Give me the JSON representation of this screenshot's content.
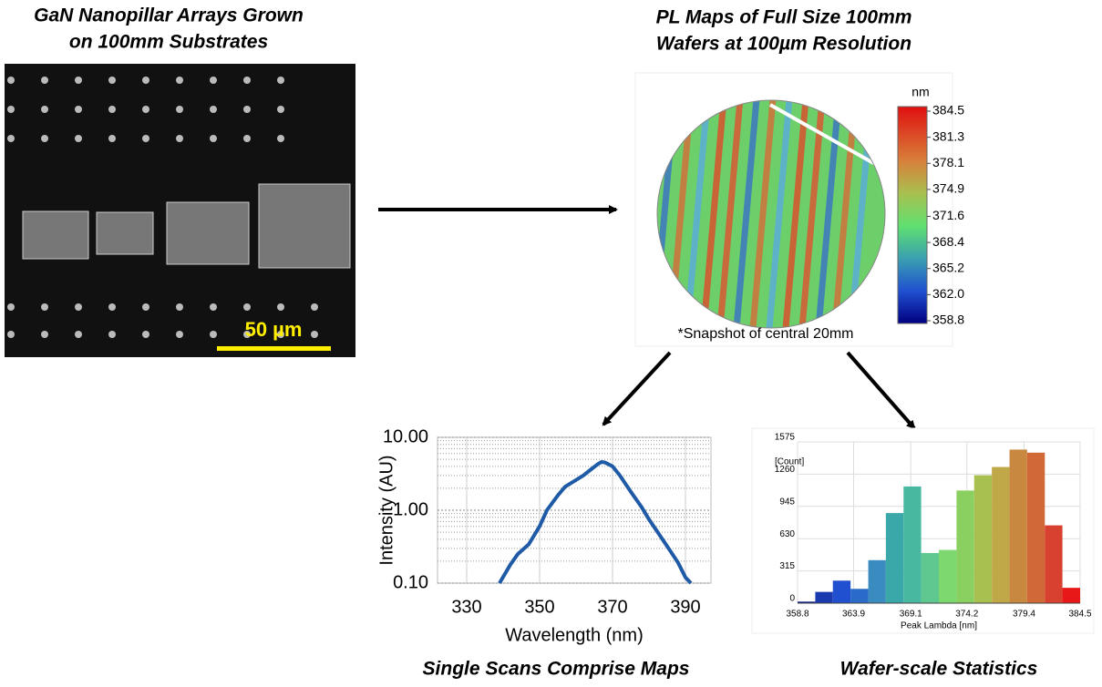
{
  "sem_panel": {
    "title": [
      "GaN Nanopillar Arrays Grown",
      "on 100mm Substrates"
    ],
    "scale_bar": "50 µm"
  },
  "map_panel": {
    "title": [
      "PL Maps of Full Size 100mm",
      "Wafers at 100µm Resolution"
    ],
    "note": "*Snapshot of central 20mm",
    "colorbar": {
      "unit": "nm",
      "ticks": [
        384.5,
        381.3,
        378.1,
        374.9,
        371.6,
        368.4,
        365.2,
        {
          "value": 362,
          "label": "362.0"
        },
        358.8
      ]
    }
  },
  "chart_data": [
    {
      "type": "line",
      "title": "Single Scans Comprise Maps",
      "x_label": "Wavelength (nm)",
      "y_label": "Intensity (AU)",
      "log_y": true,
      "grid": true,
      "color": "#1f5aa6",
      "xlim": [
        322,
        397
      ],
      "xticks": [
        330,
        350,
        370,
        390
      ],
      "ylim": [
        0.1,
        10
      ],
      "yticks": [
        {
          "value": 10,
          "label": "10.00"
        },
        {
          "value": 1,
          "label": "1.00"
        },
        {
          "value": 0.1,
          "label": "0.10"
        }
      ],
      "x": [
        339,
        342,
        344,
        347,
        350,
        352,
        355,
        357,
        360,
        362,
        364,
        366,
        367,
        368,
        370,
        372,
        375,
        378,
        380,
        383,
        385,
        388,
        390,
        391.5
      ],
      "values": [
        0.1,
        0.18,
        0.25,
        0.34,
        0.6,
        1.0,
        1.6,
        2.1,
        2.6,
        3.0,
        3.6,
        4.3,
        4.6,
        4.5,
        4.0,
        3.0,
        1.8,
        1.1,
        0.75,
        0.45,
        0.32,
        0.19,
        0.12,
        0.1
      ]
    },
    {
      "type": "histogram",
      "title": "Wafer-scale Statistics",
      "x_label": "Peak Lambda [nm]",
      "y_label": "[Count]",
      "xlim": [
        358.8,
        384.5
      ],
      "xticks": [
        358.8,
        363.9,
        369.1,
        374.2,
        379.4,
        384.5
      ],
      "ylim": [
        0,
        1575
      ],
      "yticks": [
        0,
        315,
        630,
        945,
        1260,
        1575
      ],
      "bins": [
        358.8,
        360.41,
        362.01,
        363.62,
        365.23,
        366.83,
        368.44,
        370.04,
        371.65,
        373.26,
        374.86,
        376.47,
        378.08,
        379.68,
        381.29,
        382.89,
        384.5
      ],
      "values": [
        15,
        110,
        220,
        140,
        420,
        880,
        1140,
        490,
        520,
        1100,
        1250,
        1330,
        1500,
        1470,
        760,
        150
      ],
      "colors": [
        "#0a1a8c",
        "#1a3ab0",
        "#2050d0",
        "#2a6ac8",
        "#3a8cc0",
        "#3aa8a8",
        "#48b8a0",
        "#5ec890",
        "#7ed870",
        "#8ad060",
        "#a8c050",
        "#c0a848",
        "#c88840",
        "#d06838",
        "#d84030",
        "#e81818"
      ]
    }
  ]
}
